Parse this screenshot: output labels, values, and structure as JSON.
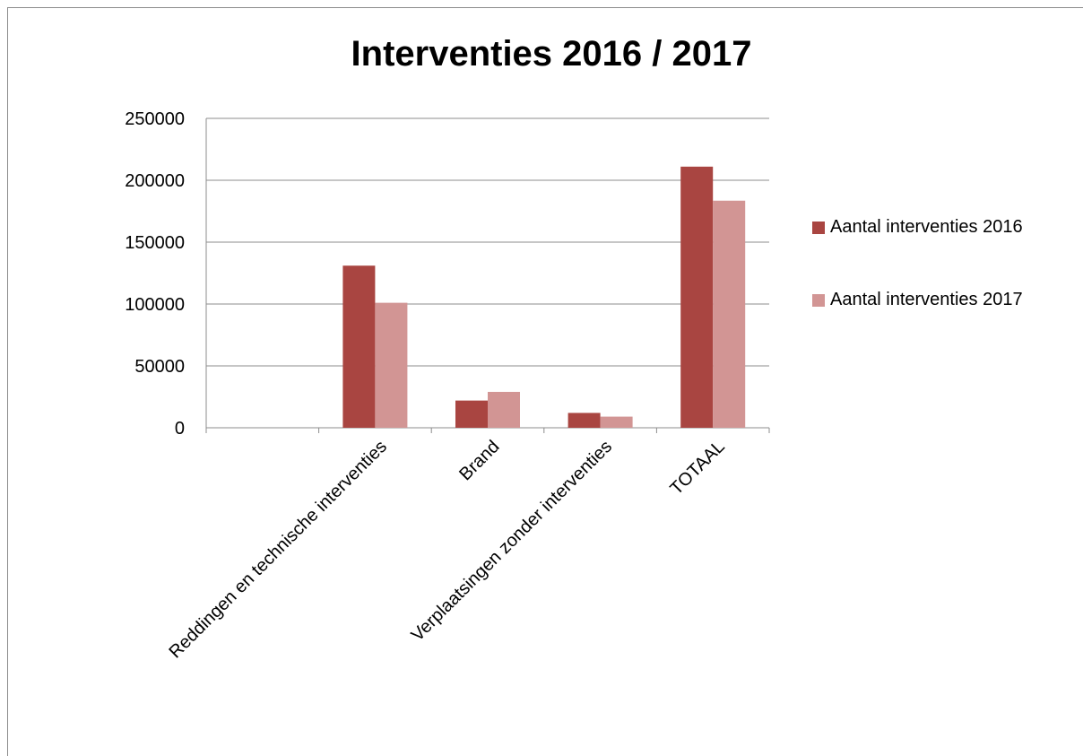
{
  "chart_data": {
    "type": "bar",
    "title": "Interventies 2016 / 2017",
    "categories": [
      "",
      "Reddingen en technische interventies",
      "Brand",
      "Verplaatsingen zonder interventies",
      "TOTAAL"
    ],
    "series": [
      {
        "name": "Aantal interventies 2016",
        "color": "#a94541",
        "values": [
          null,
          131000,
          22000,
          12000,
          211000
        ]
      },
      {
        "name": "Aantal interventies 2017",
        "color": "#d29594",
        "values": [
          null,
          101000,
          29000,
          9000,
          183500
        ]
      }
    ],
    "ylim": [
      0,
      250000
    ],
    "yticks": [
      "0",
      "50000",
      "100000",
      "150000",
      "200000",
      "250000"
    ],
    "grid": true,
    "legend_position": "right"
  }
}
